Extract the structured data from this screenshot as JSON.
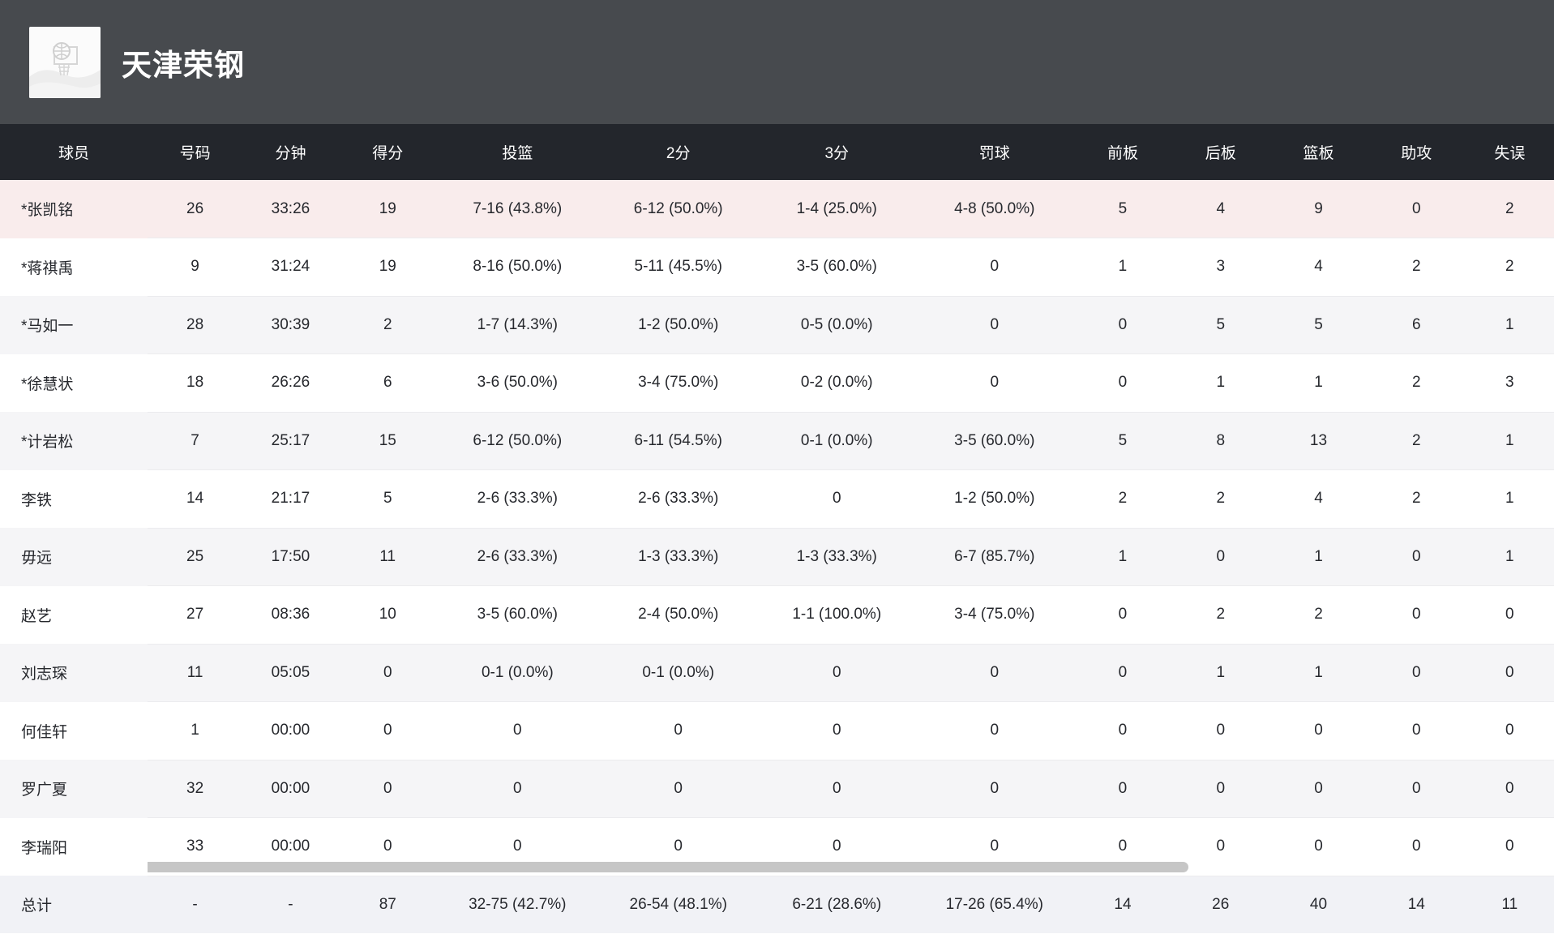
{
  "header": {
    "team_name": "天津荣钢",
    "logo": "basketball-hoop-placeholder-image"
  },
  "colors": {
    "top_panel_bg": "#474a4e",
    "table_header_bg": "#23262c",
    "highlight_row_bg": "#f9ecec",
    "alt_row_bg": "#f5f5f7",
    "total_row_bg": "#f1f2f6",
    "scrollbar_thumb": "#c6c6c6"
  },
  "table": {
    "columns": [
      {
        "key": "player",
        "label": "球员"
      },
      {
        "key": "number",
        "label": "号码"
      },
      {
        "key": "minutes",
        "label": "分钟"
      },
      {
        "key": "points",
        "label": "得分"
      },
      {
        "key": "fg",
        "label": "投篮"
      },
      {
        "key": "two",
        "label": "2分"
      },
      {
        "key": "three",
        "label": "3分"
      },
      {
        "key": "ft",
        "label": "罚球"
      },
      {
        "key": "oreb",
        "label": "前板"
      },
      {
        "key": "dreb",
        "label": "后板"
      },
      {
        "key": "reb",
        "label": "篮板"
      },
      {
        "key": "ast",
        "label": "助攻"
      },
      {
        "key": "tov",
        "label": "失误"
      }
    ],
    "rows": [
      {
        "highlight": true,
        "cells": [
          "*张凯铭",
          "26",
          "33:26",
          "19",
          "7-16 (43.8%)",
          "6-12 (50.0%)",
          "1-4 (25.0%)",
          "4-8 (50.0%)",
          "5",
          "4",
          "9",
          "0",
          "2"
        ]
      },
      {
        "cells": [
          "*蒋祺禹",
          "9",
          "31:24",
          "19",
          "8-16 (50.0%)",
          "5-11 (45.5%)",
          "3-5 (60.0%)",
          "0",
          "1",
          "3",
          "4",
          "2",
          "2"
        ]
      },
      {
        "cells": [
          "*马如一",
          "28",
          "30:39",
          "2",
          "1-7 (14.3%)",
          "1-2 (50.0%)",
          "0-5 (0.0%)",
          "0",
          "0",
          "5",
          "5",
          "6",
          "1"
        ]
      },
      {
        "cells": [
          "*徐慧状",
          "18",
          "26:26",
          "6",
          "3-6 (50.0%)",
          "3-4 (75.0%)",
          "0-2 (0.0%)",
          "0",
          "0",
          "1",
          "1",
          "2",
          "3"
        ]
      },
      {
        "cells": [
          "*计岩松",
          "7",
          "25:17",
          "15",
          "6-12 (50.0%)",
          "6-11 (54.5%)",
          "0-1 (0.0%)",
          "3-5 (60.0%)",
          "5",
          "8",
          "13",
          "2",
          "1"
        ]
      },
      {
        "cells": [
          "李铁",
          "14",
          "21:17",
          "5",
          "2-6 (33.3%)",
          "2-6 (33.3%)",
          "0",
          "1-2 (50.0%)",
          "2",
          "2",
          "4",
          "2",
          "1"
        ]
      },
      {
        "cells": [
          "毋远",
          "25",
          "17:50",
          "11",
          "2-6 (33.3%)",
          "1-3 (33.3%)",
          "1-3 (33.3%)",
          "6-7 (85.7%)",
          "1",
          "0",
          "1",
          "0",
          "1"
        ]
      },
      {
        "cells": [
          "赵艺",
          "27",
          "08:36",
          "10",
          "3-5 (60.0%)",
          "2-4 (50.0%)",
          "1-1 (100.0%)",
          "3-4 (75.0%)",
          "0",
          "2",
          "2",
          "0",
          "0"
        ]
      },
      {
        "cells": [
          "刘志琛",
          "11",
          "05:05",
          "0",
          "0-1 (0.0%)",
          "0-1 (0.0%)",
          "0",
          "0",
          "0",
          "1",
          "1",
          "0",
          "0"
        ]
      },
      {
        "cells": [
          "何佳轩",
          "1",
          "00:00",
          "0",
          "0",
          "0",
          "0",
          "0",
          "0",
          "0",
          "0",
          "0",
          "0"
        ]
      },
      {
        "cells": [
          "罗广夏",
          "32",
          "00:00",
          "0",
          "0",
          "0",
          "0",
          "0",
          "0",
          "0",
          "0",
          "0",
          "0"
        ]
      },
      {
        "cells": [
          "李瑞阳",
          "33",
          "00:00",
          "0",
          "0",
          "0",
          "0",
          "0",
          "0",
          "0",
          "0",
          "0",
          "0"
        ]
      }
    ],
    "total": {
      "cells": [
        "总计",
        "-",
        "-",
        "87",
        "32-75 (42.7%)",
        "26-54 (48.1%)",
        "6-21 (28.6%)",
        "17-26 (65.4%)",
        "14",
        "26",
        "40",
        "14",
        "11"
      ]
    }
  }
}
